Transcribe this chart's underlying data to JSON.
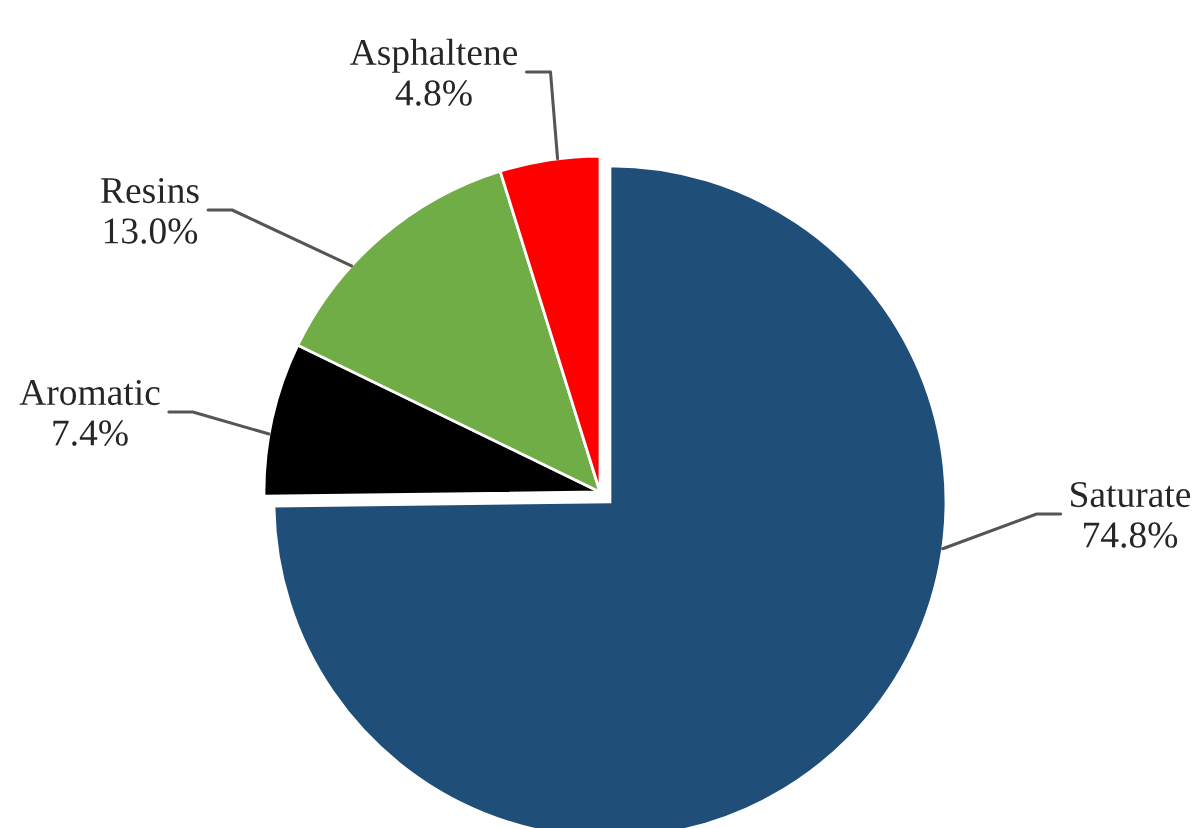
{
  "chart_data": {
    "type": "pie",
    "categories": [
      "Saturate",
      "Aromatic",
      "Resins",
      "Asphaltene"
    ],
    "values": [
      74.8,
      7.4,
      13.0,
      4.8
    ],
    "colors": [
      "#1f4e79",
      "#000000",
      "#70ad47",
      "#ff0000"
    ],
    "value_labels": [
      "74.8%",
      "7.4%",
      "13.0%",
      "4.8%"
    ]
  }
}
